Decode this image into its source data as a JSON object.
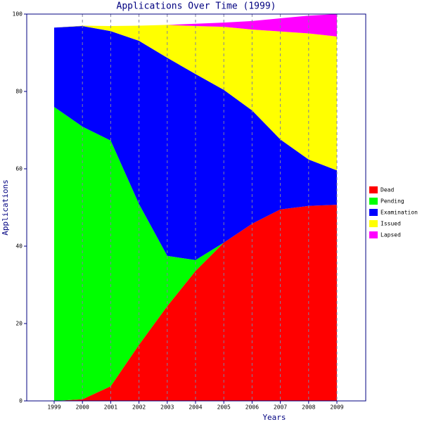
{
  "chart_data": {
    "type": "stacked_area",
    "title": "Applications Over Time (1999)",
    "x_label": "Years",
    "y_label": "Applications",
    "categories": [
      "1999",
      "2000",
      "2001",
      "2002",
      "2003",
      "2004",
      "2005",
      "2006",
      "2007",
      "2008",
      "2009"
    ],
    "ylim": [
      0,
      100
    ],
    "yticks": [
      0,
      20,
      40,
      60,
      80,
      100
    ],
    "grid": true,
    "series": [
      {
        "name": "Dead",
        "color": "#ff0000",
        "values": [
          0,
          0.4,
          3.8,
          14.5,
          24.5,
          33.6,
          40.9,
          45.8,
          49.5,
          50.4,
          50.7
        ]
      },
      {
        "name": "Pending",
        "color": "#00ff00",
        "values": [
          76,
          70.5,
          63.5,
          36.4,
          13,
          2.8,
          0,
          0,
          0,
          0,
          0
        ]
      },
      {
        "name": "Examination",
        "color": "#0000ff",
        "values": [
          20.5,
          26,
          28.3,
          42.2,
          51.2,
          48.1,
          39.5,
          29.3,
          18.1,
          12,
          8.9
        ]
      },
      {
        "name": "Issued",
        "color": "#ffff00",
        "values": [
          0,
          0.1,
          1.3,
          3.9,
          8.5,
          12.4,
          16.3,
          20.9,
          27.9,
          32.6,
          34.6
        ]
      },
      {
        "name": "Lapsed",
        "color": "#ff00ff",
        "values": [
          0,
          0,
          0,
          0,
          0,
          0.6,
          1.1,
          2.2,
          3.4,
          4.6,
          5.8
        ]
      }
    ]
  }
}
